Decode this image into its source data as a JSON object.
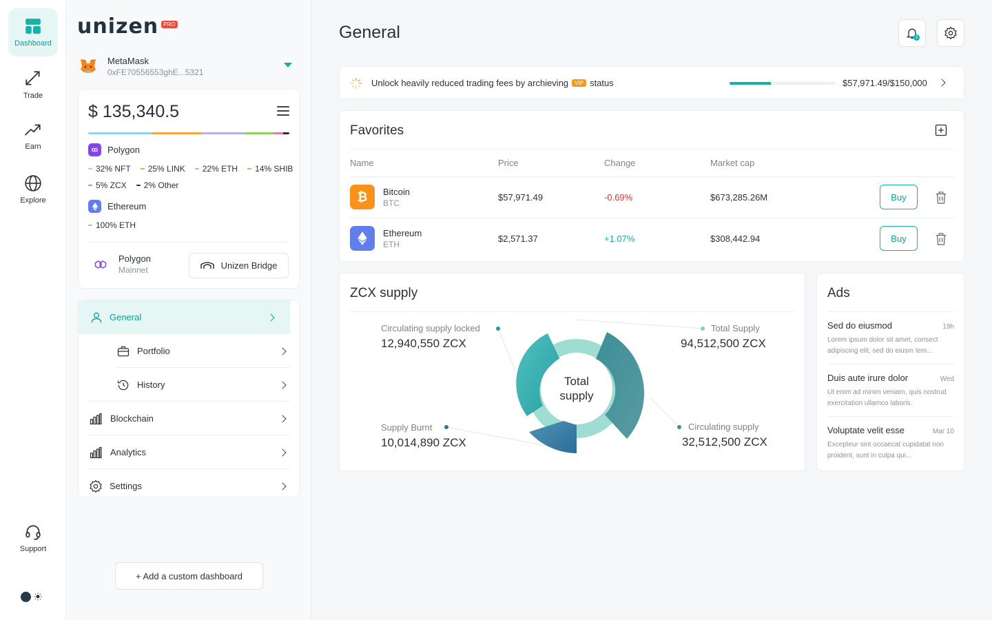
{
  "rail": {
    "items": [
      {
        "label": "Dashboard",
        "icon": "dashboard-icon"
      },
      {
        "label": "Trade",
        "icon": "trade-arrows-icon"
      },
      {
        "label": "Earn",
        "icon": "trend-up-icon"
      },
      {
        "label": "Explore",
        "icon": "globe-icon"
      }
    ],
    "support_label": "Support"
  },
  "brand": {
    "name": "unizen",
    "badge": "PRO"
  },
  "wallet": {
    "name": "MetaMask",
    "address": "0xFE70556553ghE...5321"
  },
  "portfolio": {
    "balance": "$ 135,340.5",
    "chains": [
      {
        "name": "Polygon",
        "allocations": [
          "32% NFT",
          "25% LINK",
          "22% ETH",
          "14% SHIB",
          "5% ZCX",
          "2% Other"
        ],
        "colors": [
          "#8fd7f0",
          "#f4a640",
          "#b6b0e8",
          "#8bd35a",
          "#ef7aa0",
          "#2b3138"
        ]
      },
      {
        "name": "Ethereum",
        "allocations": [
          "100% ETH"
        ],
        "colors": [
          "#b6b0e8"
        ]
      }
    ],
    "network": {
      "name": "Polygon",
      "sub": "Mainnet"
    },
    "bridge_label": "Unizen Bridge"
  },
  "nav": {
    "general": "General",
    "portfolio": "Portfolio",
    "history": "History",
    "blockchain": "Blockchain",
    "analytics": "Analytics",
    "settings": "Settings"
  },
  "add_dashboard_label": "+ Add a custom dashboard",
  "header": {
    "title": "General",
    "notification_count": "3"
  },
  "banner": {
    "text_before": "Unlock heavily reduced trading fees by archieving",
    "badge": "VIP",
    "text_after": "status",
    "progress_text": "$57,971.49/$150,000",
    "progress_fraction": 0.3865
  },
  "favorites": {
    "title": "Favorites",
    "columns": [
      "Name",
      "Price",
      "Change",
      "Market cap"
    ],
    "rows": [
      {
        "name": "Bitcoin",
        "symbol": "BTC",
        "price": "$57,971.49",
        "change": "-0.69%",
        "market_cap": "$673,285.26M",
        "buy": "Buy",
        "color": "#f7931a"
      },
      {
        "name": "Ethereum",
        "symbol": "ETH",
        "price": "$2,571.37",
        "change": "+1.07%",
        "market_cap": "$308,442.94",
        "buy": "Buy",
        "color": "#627eea"
      }
    ]
  },
  "supply": {
    "title": "ZCX supply",
    "center_line1": "Total",
    "center_line2": "supply",
    "locked": {
      "label": "Circulating supply locked",
      "value": "12,940,550 ZCX"
    },
    "total": {
      "label": "Total Supply",
      "value": "94,512,500 ZCX"
    },
    "burnt": {
      "label": "Supply Burnt",
      "value": "10,014,890 ZCX"
    },
    "circulating": {
      "label": "Circulating supply",
      "value": "32,512,500 ZCX"
    }
  },
  "ads": {
    "title": "Ads",
    "items": [
      {
        "title": "Sed do eiusmod",
        "time": "19h",
        "body": "Lorem ipsum dolor sit amet, consect adipiscing elit, sed do eiusm tem..."
      },
      {
        "title": "Duis aute irure dolor",
        "time": "Wed",
        "body": "Ut enim ad minim veniam, quis nostrud exercitation ullamco laboris."
      },
      {
        "title": "Voluptate velit esse",
        "time": "Mar 10",
        "body": "Excepteur sint occaecat cupidatat non proident, sunt in culpa qui..."
      }
    ]
  }
}
